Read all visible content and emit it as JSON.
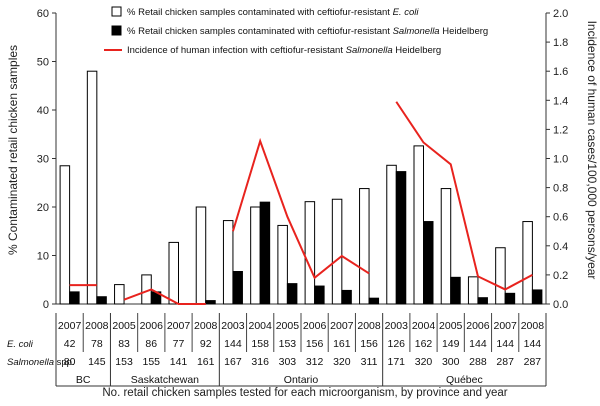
{
  "chart_data": {
    "type": "bar",
    "ylabel": "% Contaminated retail chicken samples",
    "y2label": "Incidence of human cases/100,000 persons/year",
    "xlabel": "No. retail chicken samples tested for each microorganism, by province and year",
    "ylim": [
      0,
      60
    ],
    "y2lim": [
      0,
      2.0
    ],
    "yticks": [
      "0",
      "10",
      "20",
      "30",
      "40",
      "50",
      "60"
    ],
    "y2ticks": [
      "0.0",
      "0.2",
      "0.4",
      "0.6",
      "0.8",
      "1.0",
      "1.2",
      "1.4",
      "1.6",
      "1.8",
      "2.0"
    ],
    "provinces": [
      "BC",
      "Saskatchewan",
      "Ontario",
      "Québec"
    ],
    "groups": [
      {
        "province": "BC",
        "years": [
          "2007",
          "2008"
        ],
        "ecoli_n": [
          "42",
          "78"
        ],
        "salm_n": [
          "80",
          "145"
        ]
      },
      {
        "province": "Saskatchewan",
        "years": [
          "2005",
          "2006",
          "2007",
          "2008"
        ],
        "ecoli_n": [
          "83",
          "86",
          "77",
          "92"
        ],
        "salm_n": [
          "153",
          "155",
          "141",
          "161"
        ]
      },
      {
        "province": "Ontario",
        "years": [
          "2003",
          "2004",
          "2005",
          "2006",
          "2007",
          "2008"
        ],
        "ecoli_n": [
          "144",
          "158",
          "153",
          "156",
          "161",
          "156"
        ],
        "salm_n": [
          "167",
          "316",
          "303",
          "312",
          "320",
          "311"
        ]
      },
      {
        "province": "Québec",
        "years": [
          "2003",
          "2004",
          "2005",
          "2006",
          "2007",
          "2008"
        ],
        "ecoli_n": [
          "126",
          "162",
          "149",
          "144",
          "144",
          "144"
        ],
        "salm_n": [
          "171",
          "320",
          "300",
          "288",
          "287",
          "287"
        ]
      }
    ],
    "series": [
      {
        "name_prefix": "% Retail chicken samples contaminated with ceftiofur-resistant ",
        "name_italic": "E. coli",
        "name_suffix": "",
        "type": "bar",
        "fill": "#ffffff",
        "values": [
          [
            28.5,
            48
          ],
          [
            4,
            6,
            12.7,
            20
          ],
          [
            17.2,
            20,
            16.2,
            21.1,
            21.6,
            23.8
          ],
          [
            28.6,
            32.6,
            23.8,
            5.6,
            11.6,
            17
          ]
        ]
      },
      {
        "name_prefix": "% Retail chicken samples contaminated with ceftiofur-resistant ",
        "name_italic": "Salmonella",
        "name_suffix": " Heidelberg",
        "type": "bar",
        "fill": "#000000",
        "values": [
          [
            2.5,
            1.5
          ],
          [
            0,
            2.5,
            0,
            0.7
          ],
          [
            6.7,
            21,
            4.2,
            3.7,
            2.8,
            1.2
          ],
          [
            27.3,
            17,
            5.5,
            1.3,
            2.2,
            2.9
          ]
        ]
      },
      {
        "name_prefix": "Incidence of human infection with ceftiofur-resistant ",
        "name_italic": "Salmonella",
        "name_suffix": " Heidelberg",
        "type": "line",
        "color": "#e8231e",
        "axis": "right",
        "values": [
          [
            0.13,
            0.13
          ],
          [
            0.03,
            0.1,
            0.0,
            0.0
          ],
          [
            0.5,
            1.12,
            0.6,
            0.18,
            0.33,
            0.21
          ],
          [
            1.39,
            1.11,
            0.96,
            0.19,
            0.1,
            0.2
          ]
        ]
      }
    ],
    "table_row_labels": [
      {
        "italic": "E. coli",
        "plain": ""
      },
      {
        "italic": "Salmonella",
        "plain": " spp."
      }
    ]
  }
}
